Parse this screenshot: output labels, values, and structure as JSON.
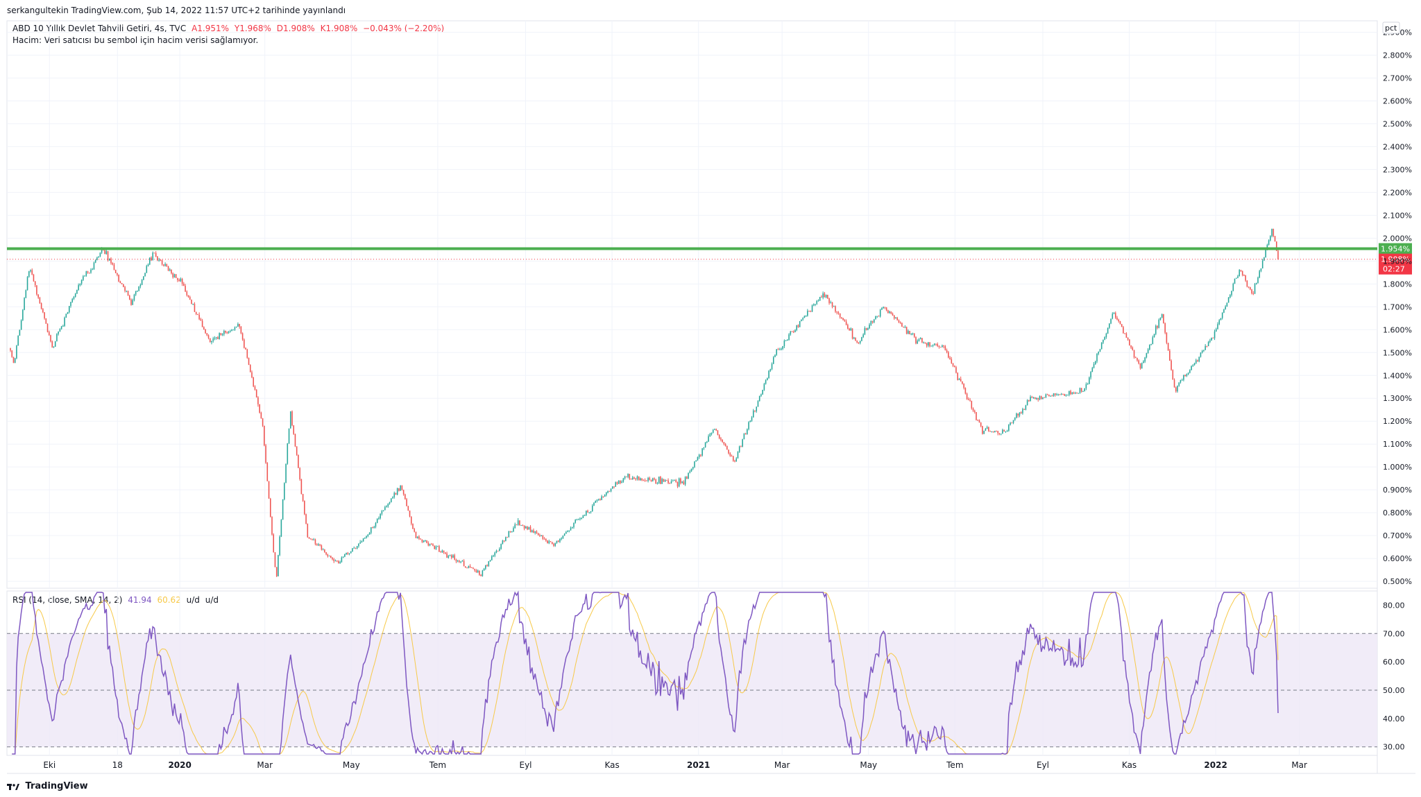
{
  "header": {
    "publisher": "serkangultekin TradingView.com, Şub 14, 2022 11:57 UTC+2 tarihinde yayınlandı"
  },
  "legend": {
    "symbol": "ABD 10 Yıllık Devlet Tahvili Getiri, 4s, TVC",
    "open": "A1.951%",
    "high": "Y1.968%",
    "low": "D1.908%",
    "close": "K1.908%",
    "change": "−0.043% (−2.20%)",
    "volume_note": "Hacim: Veri satıcısı bu sembol için hacim verisi sağlamıyor."
  },
  "rsi_legend": {
    "label": "RSI (14, close, SMA, 14, 2)",
    "rsi_value": "41.94",
    "sma_value": "60.62",
    "ud1": "u/d",
    "ud2": "u/d"
  },
  "footer": {
    "brand": "TradingView"
  },
  "colors": {
    "up": "#26a69a",
    "down": "#ef5350",
    "level_line": "#4caf50",
    "last_price": "#f23645",
    "rsi_line": "#7e57c2",
    "rsi_sma": "#f7c948",
    "rsi_band": "#ede7f6"
  },
  "chart_data": [
    {
      "type": "candlestick",
      "unit_label": "pct",
      "ylim": [
        0.47,
        2.95
      ],
      "y_ticks": [
        "2.900%",
        "2.800%",
        "2.700%",
        "2.600%",
        "2.500%",
        "2.400%",
        "2.300%",
        "2.200%",
        "2.100%",
        "2.000%",
        "1.900%",
        "1.800%",
        "1.700%",
        "1.600%",
        "1.500%",
        "1.400%",
        "1.300%",
        "1.200%",
        "1.100%",
        "1.000%",
        "0.900%",
        "0.800%",
        "0.700%",
        "0.600%",
        "0.500%"
      ],
      "x_ticks": [
        "Eki",
        "18",
        "2020",
        "Mar",
        "May",
        "Tem",
        "Eyl",
        "Kas",
        "2021",
        "Mar",
        "May",
        "Tem",
        "Eyl",
        "Kas",
        "2022",
        "Mar"
      ],
      "x_ticks_bold": [
        "2020",
        "2021",
        "2022"
      ],
      "date_range": [
        "2019-09-01",
        "2022-02-14"
      ],
      "horizontal_level": {
        "value": 1.954,
        "label": "1.954%"
      },
      "last_price": {
        "value": 1.908,
        "label": "1.908%",
        "countdown": "02:27"
      },
      "approx_path": [
        {
          "date": "2019-09-01",
          "value": 1.55
        },
        {
          "date": "2019-09-06",
          "value": 1.45
        },
        {
          "date": "2019-09-17",
          "value": 1.88
        },
        {
          "date": "2019-10-03",
          "value": 1.52
        },
        {
          "date": "2019-10-22",
          "value": 1.8
        },
        {
          "date": "2019-11-08",
          "value": 1.95
        },
        {
          "date": "2019-11-28",
          "value": 1.72
        },
        {
          "date": "2019-12-13",
          "value": 1.93
        },
        {
          "date": "2020-01-03",
          "value": 1.8
        },
        {
          "date": "2020-01-22",
          "value": 1.55
        },
        {
          "date": "2020-02-12",
          "value": 1.62
        },
        {
          "date": "2020-02-28",
          "value": 1.2
        },
        {
          "date": "2020-03-09",
          "value": 0.5
        },
        {
          "date": "2020-03-19",
          "value": 1.25
        },
        {
          "date": "2020-03-31",
          "value": 0.7
        },
        {
          "date": "2020-04-21",
          "value": 0.58
        },
        {
          "date": "2020-05-12",
          "value": 0.7
        },
        {
          "date": "2020-06-05",
          "value": 0.92
        },
        {
          "date": "2020-06-15",
          "value": 0.7
        },
        {
          "date": "2020-07-31",
          "value": 0.53
        },
        {
          "date": "2020-08-26",
          "value": 0.76
        },
        {
          "date": "2020-09-21",
          "value": 0.66
        },
        {
          "date": "2020-10-23",
          "value": 0.86
        },
        {
          "date": "2020-11-11",
          "value": 0.96
        },
        {
          "date": "2020-12-21",
          "value": 0.93
        },
        {
          "date": "2021-01-12",
          "value": 1.17
        },
        {
          "date": "2021-01-26",
          "value": 1.02
        },
        {
          "date": "2021-02-25",
          "value": 1.5
        },
        {
          "date": "2021-03-30",
          "value": 1.76
        },
        {
          "date": "2021-04-23",
          "value": 1.55
        },
        {
          "date": "2021-05-12",
          "value": 1.7
        },
        {
          "date": "2021-06-04",
          "value": 1.55
        },
        {
          "date": "2021-06-24",
          "value": 1.52
        },
        {
          "date": "2021-07-20",
          "value": 1.16
        },
        {
          "date": "2021-08-04",
          "value": 1.15
        },
        {
          "date": "2021-08-24",
          "value": 1.3
        },
        {
          "date": "2021-09-30",
          "value": 1.33
        },
        {
          "date": "2021-10-21",
          "value": 1.68
        },
        {
          "date": "2021-11-09",
          "value": 1.43
        },
        {
          "date": "2021-11-24",
          "value": 1.67
        },
        {
          "date": "2021-12-03",
          "value": 1.34
        },
        {
          "date": "2021-12-29",
          "value": 1.55
        },
        {
          "date": "2022-01-18",
          "value": 1.86
        },
        {
          "date": "2022-01-27",
          "value": 1.75
        },
        {
          "date": "2022-02-10",
          "value": 2.05
        },
        {
          "date": "2022-02-14",
          "value": 1.908
        }
      ]
    },
    {
      "type": "line",
      "title": "RSI (14, close, SMA, 14, 2)",
      "ylim": [
        27,
        85
      ],
      "y_ticks": [
        "80.00",
        "70.00",
        "60.00",
        "50.00",
        "40.00",
        "30.00"
      ],
      "bands": {
        "upper": 70,
        "middle": 50,
        "lower": 30
      },
      "series": [
        {
          "name": "RSI",
          "last": 41.94
        },
        {
          "name": "SMA",
          "last": 60.62
        }
      ]
    }
  ]
}
